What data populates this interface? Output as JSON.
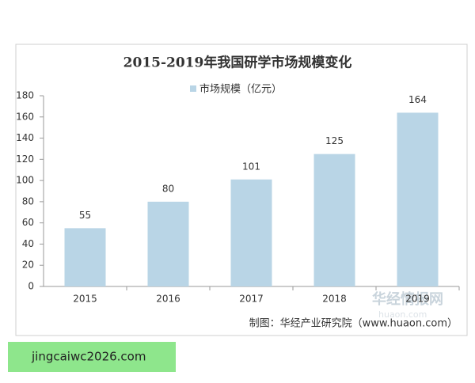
{
  "chart_data": {
    "type": "bar",
    "title": "2015-2019年我国研学市场规模变化",
    "categories": [
      "2015",
      "2016",
      "2017",
      "2018",
      "2019"
    ],
    "series": [
      {
        "name": "市场规模（亿元）",
        "color": "#b9d5e6",
        "values": [
          55,
          80,
          101,
          125,
          164
        ]
      }
    ],
    "ylim": [
      0,
      180
    ],
    "yticks": [
      0,
      20,
      40,
      60,
      80,
      100,
      120,
      140,
      160,
      180
    ],
    "grid": false,
    "legend": "top",
    "source": "制图：华经产业研究院（www.huaon.com）",
    "watermark": [
      "华经情报网",
      "huaon.com"
    ]
  },
  "banner": "jingcaiwc2026.com"
}
